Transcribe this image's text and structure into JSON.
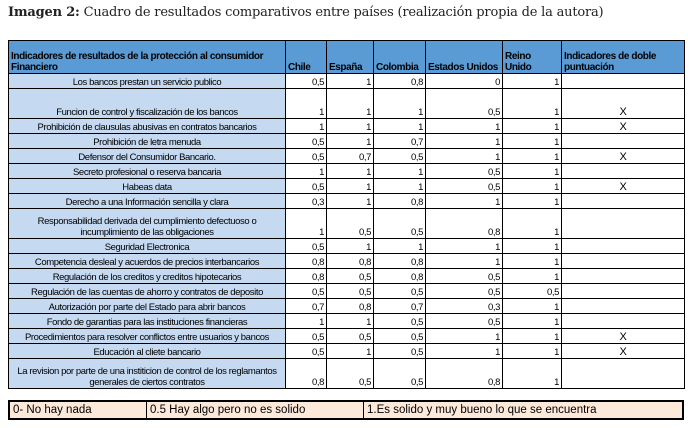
{
  "caption": {
    "label": "Imagen 2:",
    "text": " Cuadro de resultados comparativos entre países (realización propia de la autora)"
  },
  "table": {
    "headers": [
      "Indicadores de resultados de la protección al consumidor Financiero",
      "Chile",
      "España",
      "Colombia",
      "Estados Unidos",
      "Reino Unido",
      "Indicadores de doble puntuación"
    ],
    "rows": [
      {
        "label": "Los bancos prestan un servicio publico",
        "values": [
          "0,5",
          "1",
          "0,8",
          "0",
          "1"
        ],
        "double": "",
        "tall": false
      },
      {
        "label": "Funcion de control y fiscalización de los bancos",
        "values": [
          "1",
          "1",
          "1",
          "0,5",
          "1"
        ],
        "double": "X",
        "tall": true
      },
      {
        "label": "Prohibición de clausulas abusivas en contratos bancarios",
        "values": [
          "1",
          "1",
          "1",
          "1",
          "1"
        ],
        "double": "X",
        "tall": false
      },
      {
        "label": "Prohibición de letra menuda",
        "values": [
          "0,5",
          "1",
          "0,7",
          "1",
          "1"
        ],
        "double": "",
        "tall": false
      },
      {
        "label": "Defensor del Consumidor Bancario.",
        "values": [
          "0,5",
          "0,7",
          "0,5",
          "1",
          "1"
        ],
        "double": "X",
        "tall": false
      },
      {
        "label": "Secreto profesional o reserva bancaria",
        "values": [
          "1",
          "1",
          "1",
          "0,5",
          "1"
        ],
        "double": "",
        "tall": false
      },
      {
        "label": "Habeas data",
        "values": [
          "0,5",
          "1",
          "1",
          "0,5",
          "1"
        ],
        "double": "X",
        "tall": false
      },
      {
        "label": "Derecho a una Información sencilla y clara",
        "values": [
          "0,3",
          "1",
          "0,8",
          "1",
          "1"
        ],
        "double": "",
        "tall": false
      },
      {
        "label": "Responsabilidad derivada del cumplimiento defectuoso o incumplimiento de las obligaciones",
        "values": [
          "1",
          "0,5",
          "0,5",
          "0,8",
          "1"
        ],
        "double": "",
        "tall": true
      },
      {
        "label": "Seguridad Electronica",
        "values": [
          "0,5",
          "1",
          "1",
          "1",
          "1"
        ],
        "double": "",
        "tall": false
      },
      {
        "label": "Competencia desleal y acuerdos de precios interbancarios",
        "values": [
          "0,8",
          "0,8",
          "0,8",
          "1",
          "1"
        ],
        "double": "",
        "tall": false
      },
      {
        "label": "Regulación de los creditos y creditos hipotecarios",
        "values": [
          "0,8",
          "0,5",
          "0,8",
          "0,5",
          "1"
        ],
        "double": "",
        "tall": false
      },
      {
        "label": "Regulación de las cuentas de ahorro y contratos de deposito",
        "values": [
          "0,5",
          "0,5",
          "0,5",
          "0,5",
          "0,5"
        ],
        "double": "",
        "tall": false
      },
      {
        "label": "Autorización por parte del Estado para abrir bancos",
        "values": [
          "0,7",
          "0,8",
          "0,7",
          "0,3",
          "1"
        ],
        "double": "",
        "tall": false
      },
      {
        "label": "Fondo de garantias para las instituciones financieras",
        "values": [
          "1",
          "1",
          "0,5",
          "0,5",
          "1"
        ],
        "double": "",
        "tall": false
      },
      {
        "label": "Procedimientos para resolver conflictos entre usuarios y bancos",
        "values": [
          "0,5",
          "0,5",
          "0,5",
          "1",
          "1"
        ],
        "double": "X",
        "tall": false
      },
      {
        "label": "Educación al cliete bancario",
        "values": [
          "0,5",
          "1",
          "0,5",
          "1",
          "1"
        ],
        "double": "X",
        "tall": false
      },
      {
        "label": "La revision por parte de una institicion de control de los reglamantos generales de ciertos contratos",
        "values": [
          "0,8",
          "0,5",
          "0,5",
          "0,8",
          "1"
        ],
        "double": "",
        "tall": true
      }
    ]
  },
  "legend": [
    "0- No hay nada",
    "0.5 Hay algo pero no es solido",
    "1.Es solido y muy bueno lo que se encuentra"
  ],
  "colors": {
    "header": "#5b9bd5",
    "label_cell": "#c5d9f1",
    "legend": "#fde9d9"
  }
}
